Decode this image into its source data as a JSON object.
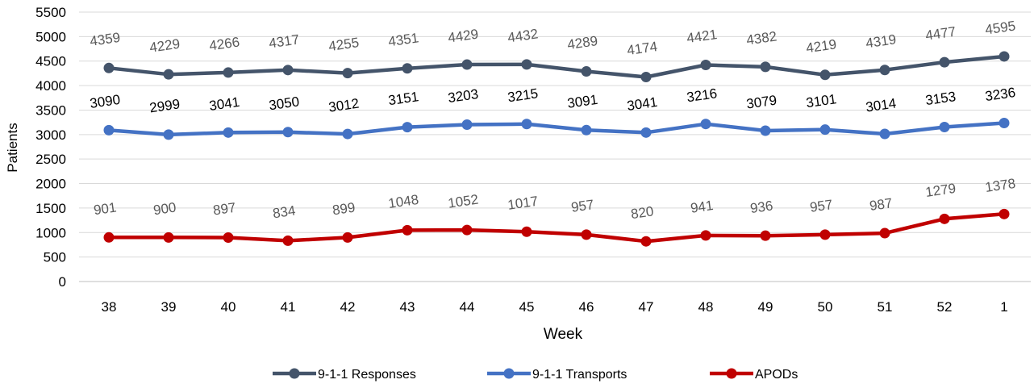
{
  "chart_data": {
    "type": "line",
    "title": "",
    "xlabel": "Week",
    "ylabel": "Patients",
    "ylim": [
      0,
      5500
    ],
    "yticks": [
      0,
      500,
      1000,
      1500,
      2000,
      2500,
      3000,
      3500,
      4000,
      4500,
      5000,
      5500
    ],
    "grid": true,
    "legend_position": "bottom",
    "categories": [
      "38",
      "39",
      "40",
      "41",
      "42",
      "43",
      "44",
      "45",
      "46",
      "47",
      "48",
      "49",
      "50",
      "51",
      "52",
      "1"
    ],
    "series": [
      {
        "name": "9-1-1 Responses",
        "color": "#44546a",
        "label_color": "#595959",
        "values": [
          4359,
          4229,
          4266,
          4317,
          4255,
          4351,
          4429,
          4432,
          4289,
          4174,
          4421,
          4382,
          4219,
          4319,
          4477,
          4595
        ]
      },
      {
        "name": "9-1-1 Transports",
        "color": "#4472c4",
        "label_color": "#000000",
        "values": [
          3090,
          2999,
          3041,
          3050,
          3012,
          3151,
          3203,
          3215,
          3091,
          3041,
          3216,
          3079,
          3101,
          3014,
          3153,
          3236
        ]
      },
      {
        "name": "APODs",
        "color": "#c00000",
        "label_color": "#595959",
        "values": [
          901,
          900,
          897,
          834,
          899,
          1048,
          1052,
          1017,
          957,
          820,
          941,
          936,
          957,
          987,
          1279,
          1378
        ]
      }
    ]
  }
}
